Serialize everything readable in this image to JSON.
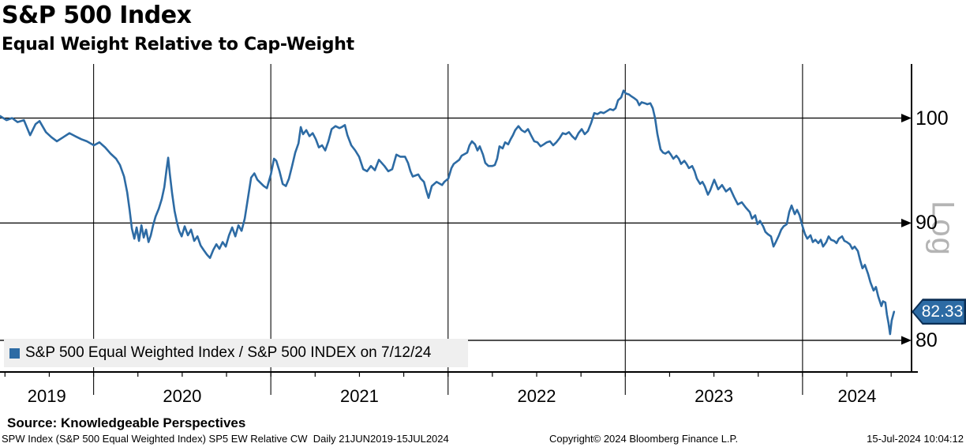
{
  "header": {
    "title": "S&P 500 Index",
    "subtitle": "Equal Weight Relative to Cap-Weight"
  },
  "legend": {
    "label": "S&P 500 Equal Weighted Index / S&P 500 INDEX on 7/12/24"
  },
  "axis": {
    "scale_label": "Log",
    "last_value_label": "82.33"
  },
  "footer": {
    "source": "Source: Knowledgeable Perspectives",
    "descriptor": "SPW Index (S&P 500 Equal Weighted Index) SP5 EW Relative CW  Daily 21JUN2019-15JUL2024",
    "copyright": "Copyright© 2024 Bloomberg Finance L.P.",
    "timestamp": "15-Jul-2024 10:04:12"
  },
  "chart_data": {
    "type": "line",
    "title": "S&P 500 Index — Equal Weight Relative to Cap-Weight",
    "xlabel": "",
    "ylabel": "",
    "x_unit": "decimal_year",
    "xlim": [
      2019.472,
      2024.615
    ],
    "ylim": [
      77.5,
      105.5
    ],
    "yscale": "log",
    "grid": true,
    "y_ticks": [
      100,
      90,
      80
    ],
    "x_gridlines": [
      2020,
      2021,
      2022,
      2023,
      2024
    ],
    "x_tick_labels": [
      "2019",
      "2020",
      "2021",
      "2022",
      "2023",
      "2024"
    ],
    "x_minor_tick_step": 0.25,
    "legend_position": "bottom-left",
    "line_color": "#2d6ba4",
    "last_value": 82.33,
    "last_date": "7/12/24",
    "series": [
      {
        "name": "S&P 500 Equal Weighted Index / S&P 500 INDEX",
        "points": [
          [
            2019.473,
            100.2
          ],
          [
            2019.509,
            99.8
          ],
          [
            2019.54,
            100.0
          ],
          [
            2019.571,
            99.6
          ],
          [
            2019.607,
            99.8
          ],
          [
            2019.642,
            98.3
          ],
          [
            2019.673,
            99.4
          ],
          [
            2019.695,
            99.7
          ],
          [
            2019.731,
            98.6
          ],
          [
            2019.762,
            98.1
          ],
          [
            2019.793,
            97.7
          ],
          [
            2019.829,
            98.1
          ],
          [
            2019.864,
            98.5
          ],
          [
            2019.896,
            98.2
          ],
          [
            2019.931,
            97.9
          ],
          [
            2019.962,
            97.7
          ],
          [
            2020.002,
            97.3
          ],
          [
            2020.033,
            97.6
          ],
          [
            2020.065,
            97.1
          ],
          [
            2020.096,
            96.5
          ],
          [
            2020.127,
            96.0
          ],
          [
            2020.149,
            95.4
          ],
          [
            2020.172,
            94.3
          ],
          [
            2020.19,
            92.8
          ],
          [
            2020.203,
            91.2
          ],
          [
            2020.216,
            89.5
          ],
          [
            2020.23,
            88.6
          ],
          [
            2020.243,
            89.6
          ],
          [
            2020.256,
            88.4
          ],
          [
            2020.27,
            89.8
          ],
          [
            2020.283,
            88.7
          ],
          [
            2020.296,
            89.4
          ],
          [
            2020.31,
            88.3
          ],
          [
            2020.323,
            88.9
          ],
          [
            2020.336,
            89.8
          ],
          [
            2020.35,
            90.6
          ],
          [
            2020.368,
            91.3
          ],
          [
            2020.385,
            92.2
          ],
          [
            2020.399,
            93.3
          ],
          [
            2020.412,
            95.0
          ],
          [
            2020.421,
            96.1
          ],
          [
            2020.43,
            94.6
          ],
          [
            2020.443,
            92.7
          ],
          [
            2020.457,
            91.1
          ],
          [
            2020.47,
            90.1
          ],
          [
            2020.483,
            89.3
          ],
          [
            2020.497,
            88.8
          ],
          [
            2020.514,
            89.7
          ],
          [
            2020.532,
            88.9
          ],
          [
            2020.55,
            89.4
          ],
          [
            2020.568,
            88.4
          ],
          [
            2020.586,
            88.8
          ],
          [
            2020.604,
            88.0
          ],
          [
            2020.621,
            87.6
          ],
          [
            2020.639,
            87.2
          ],
          [
            2020.657,
            86.9
          ],
          [
            2020.675,
            87.6
          ],
          [
            2020.693,
            88.1
          ],
          [
            2020.71,
            87.7
          ],
          [
            2020.728,
            88.3
          ],
          [
            2020.746,
            87.9
          ],
          [
            2020.764,
            88.9
          ],
          [
            2020.782,
            89.6
          ],
          [
            2020.8,
            88.8
          ],
          [
            2020.817,
            89.8
          ],
          [
            2020.835,
            89.3
          ],
          [
            2020.853,
            90.4
          ],
          [
            2020.871,
            92.3
          ],
          [
            2020.889,
            94.2
          ],
          [
            2020.907,
            94.6
          ],
          [
            2020.924,
            94.0
          ],
          [
            2020.942,
            93.7
          ],
          [
            2020.96,
            93.4
          ],
          [
            2020.978,
            93.2
          ],
          [
            2021.0,
            94.5
          ],
          [
            2021.018,
            96.0
          ],
          [
            2021.031,
            95.8
          ],
          [
            2021.049,
            94.8
          ],
          [
            2021.067,
            93.6
          ],
          [
            2021.085,
            93.4
          ],
          [
            2021.102,
            94.1
          ],
          [
            2021.12,
            95.3
          ],
          [
            2021.138,
            96.6
          ],
          [
            2021.156,
            97.5
          ],
          [
            2021.169,
            99.1
          ],
          [
            2021.182,
            98.4
          ],
          [
            2021.2,
            98.8
          ],
          [
            2021.218,
            98.2
          ],
          [
            2021.236,
            98.5
          ],
          [
            2021.254,
            97.9
          ],
          [
            2021.271,
            97.1
          ],
          [
            2021.289,
            97.3
          ],
          [
            2021.307,
            96.8
          ],
          [
            2021.325,
            97.7
          ],
          [
            2021.343,
            98.9
          ],
          [
            2021.365,
            99.2
          ],
          [
            2021.387,
            99.0
          ],
          [
            2021.4,
            99.1
          ],
          [
            2021.418,
            99.3
          ],
          [
            2021.432,
            98.3
          ],
          [
            2021.454,
            97.3
          ],
          [
            2021.476,
            96.8
          ],
          [
            2021.498,
            96.2
          ],
          [
            2021.521,
            95.0
          ],
          [
            2021.543,
            94.8
          ],
          [
            2021.565,
            95.3
          ],
          [
            2021.587,
            94.9
          ],
          [
            2021.61,
            95.9
          ],
          [
            2021.641,
            95.3
          ],
          [
            2021.663,
            94.8
          ],
          [
            2021.685,
            95.0
          ],
          [
            2021.708,
            96.4
          ],
          [
            2021.73,
            96.2
          ],
          [
            2021.757,
            96.2
          ],
          [
            2021.774,
            95.6
          ],
          [
            2021.788,
            94.8
          ],
          [
            2021.801,
            94.3
          ],
          [
            2021.832,
            94.5
          ],
          [
            2021.846,
            94.1
          ],
          [
            2021.864,
            93.8
          ],
          [
            2021.877,
            93.0
          ],
          [
            2021.89,
            92.3
          ],
          [
            2021.908,
            93.4
          ],
          [
            2021.935,
            93.8
          ],
          [
            2021.966,
            93.5
          ],
          [
            2021.979,
            93.8
          ],
          [
            2022.001,
            94.1
          ],
          [
            2022.019,
            95.1
          ],
          [
            2022.032,
            95.5
          ],
          [
            2022.063,
            95.9
          ],
          [
            2022.077,
            96.3
          ],
          [
            2022.108,
            96.6
          ],
          [
            2022.121,
            97.3
          ],
          [
            2022.135,
            97.7
          ],
          [
            2022.152,
            97.4
          ],
          [
            2022.166,
            96.8
          ],
          [
            2022.179,
            97.2
          ],
          [
            2022.197,
            96.4
          ],
          [
            2022.21,
            95.6
          ],
          [
            2022.228,
            95.3
          ],
          [
            2022.25,
            95.3
          ],
          [
            2022.264,
            95.4
          ],
          [
            2022.277,
            96.0
          ],
          [
            2022.29,
            97.2
          ],
          [
            2022.308,
            97.0
          ],
          [
            2022.322,
            97.6
          ],
          [
            2022.339,
            97.4
          ],
          [
            2022.353,
            97.9
          ],
          [
            2022.366,
            98.3
          ],
          [
            2022.379,
            98.8
          ],
          [
            2022.397,
            99.2
          ],
          [
            2022.415,
            98.8
          ],
          [
            2022.433,
            98.6
          ],
          [
            2022.451,
            98.9
          ],
          [
            2022.468,
            98.3
          ],
          [
            2022.486,
            97.7
          ],
          [
            2022.504,
            97.6
          ],
          [
            2022.522,
            97.2
          ],
          [
            2022.54,
            97.4
          ],
          [
            2022.557,
            97.6
          ],
          [
            2022.575,
            97.7
          ],
          [
            2022.593,
            97.3
          ],
          [
            2022.611,
            97.6
          ],
          [
            2022.629,
            98.0
          ],
          [
            2022.647,
            98.5
          ],
          [
            2022.664,
            98.4
          ],
          [
            2022.682,
            98.6
          ],
          [
            2022.7,
            98.2
          ],
          [
            2022.718,
            97.9
          ],
          [
            2022.736,
            98.5
          ],
          [
            2022.754,
            98.9
          ],
          [
            2022.771,
            98.4
          ],
          [
            2022.789,
            98.7
          ],
          [
            2022.807,
            99.5
          ],
          [
            2022.825,
            100.5
          ],
          [
            2022.843,
            100.4
          ],
          [
            2022.861,
            100.6
          ],
          [
            2022.878,
            100.5
          ],
          [
            2022.896,
            100.7
          ],
          [
            2022.914,
            100.9
          ],
          [
            2022.932,
            100.8
          ],
          [
            2022.945,
            101.0
          ],
          [
            2022.959,
            101.8
          ],
          [
            2022.977,
            102.1
          ],
          [
            2022.99,
            102.8
          ],
          [
            2023.003,
            102.5
          ],
          [
            2023.021,
            102.4
          ],
          [
            2023.035,
            102.2
          ],
          [
            2023.052,
            102.0
          ],
          [
            2023.066,
            101.8
          ],
          [
            2023.079,
            101.3
          ],
          [
            2023.092,
            101.6
          ],
          [
            2023.11,
            101.5
          ],
          [
            2023.124,
            101.4
          ],
          [
            2023.141,
            101.5
          ],
          [
            2023.155,
            101.0
          ],
          [
            2023.168,
            100.0
          ],
          [
            2023.181,
            98.4
          ],
          [
            2023.199,
            96.9
          ],
          [
            2023.213,
            96.6
          ],
          [
            2023.226,
            96.5
          ],
          [
            2023.244,
            96.7
          ],
          [
            2023.257,
            96.4
          ],
          [
            2023.271,
            96.0
          ],
          [
            2023.288,
            96.3
          ],
          [
            2023.302,
            96.0
          ],
          [
            2023.315,
            95.5
          ],
          [
            2023.333,
            95.8
          ],
          [
            2023.346,
            95.5
          ],
          [
            2023.359,
            95.1
          ],
          [
            2023.377,
            95.3
          ],
          [
            2023.391,
            94.8
          ],
          [
            2023.404,
            94.1
          ],
          [
            2023.422,
            93.6
          ],
          [
            2023.435,
            93.8
          ],
          [
            2023.448,
            93.4
          ],
          [
            2023.466,
            92.6
          ],
          [
            2023.479,
            93.0
          ],
          [
            2023.502,
            94.0
          ],
          [
            2023.524,
            93.1
          ],
          [
            2023.546,
            93.5
          ],
          [
            2023.568,
            92.9
          ],
          [
            2023.591,
            93.2
          ],
          [
            2023.613,
            92.4
          ],
          [
            2023.635,
            91.7
          ],
          [
            2023.657,
            91.9
          ],
          [
            2023.68,
            91.4
          ],
          [
            2023.702,
            91.0
          ],
          [
            2023.715,
            90.4
          ],
          [
            2023.733,
            90.7
          ],
          [
            2023.746,
            89.9
          ],
          [
            2023.76,
            90.2
          ],
          [
            2023.778,
            89.7
          ],
          [
            2023.791,
            89.2
          ],
          [
            2023.804,
            89.0
          ],
          [
            2023.822,
            88.8
          ],
          [
            2023.836,
            87.9
          ],
          [
            2023.849,
            88.3
          ],
          [
            2023.867,
            88.9
          ],
          [
            2023.88,
            89.4
          ],
          [
            2023.893,
            89.7
          ],
          [
            2023.911,
            89.9
          ],
          [
            2023.925,
            91.0
          ],
          [
            2023.938,
            91.6
          ],
          [
            2023.956,
            90.8
          ],
          [
            2023.969,
            91.2
          ],
          [
            2023.983,
            90.7
          ],
          [
            2024.0,
            89.7
          ],
          [
            2024.014,
            89.0
          ],
          [
            2024.027,
            88.6
          ],
          [
            2024.045,
            88.9
          ],
          [
            2024.058,
            88.3
          ],
          [
            2024.072,
            88.5
          ],
          [
            2024.089,
            88.2
          ],
          [
            2024.103,
            88.5
          ],
          [
            2024.116,
            87.9
          ],
          [
            2024.134,
            88.3
          ],
          [
            2024.147,
            88.8
          ],
          [
            2024.161,
            88.5
          ],
          [
            2024.178,
            88.4
          ],
          [
            2024.192,
            88.2
          ],
          [
            2024.205,
            88.6
          ],
          [
            2024.223,
            88.8
          ],
          [
            2024.236,
            88.4
          ],
          [
            2024.25,
            88.3
          ],
          [
            2024.267,
            88.1
          ],
          [
            2024.281,
            87.7
          ],
          [
            2024.294,
            87.9
          ],
          [
            2024.312,
            87.5
          ],
          [
            2024.325,
            86.7
          ],
          [
            2024.338,
            86.0
          ],
          [
            2024.352,
            86.3
          ],
          [
            2024.37,
            85.5
          ],
          [
            2024.383,
            84.8
          ],
          [
            2024.401,
            84.1
          ],
          [
            2024.414,
            84.4
          ],
          [
            2024.427,
            83.6
          ],
          [
            2024.445,
            82.8
          ],
          [
            2024.454,
            83.2
          ],
          [
            2024.467,
            83.1
          ],
          [
            2024.476,
            82.1
          ],
          [
            2024.485,
            81.4
          ],
          [
            2024.494,
            80.5
          ],
          [
            2024.503,
            81.6
          ],
          [
            2024.516,
            82.33
          ]
        ]
      }
    ]
  }
}
